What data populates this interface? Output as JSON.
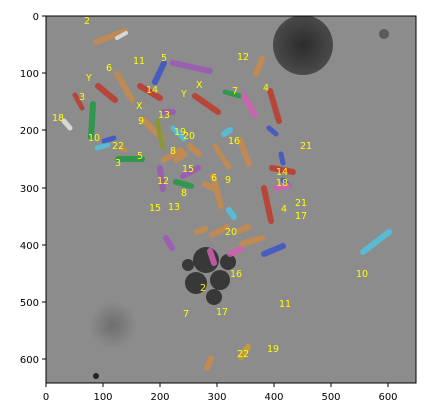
{
  "axes": {
    "x_ticks": [
      "0",
      "100",
      "200",
      "300",
      "400",
      "500",
      "600"
    ],
    "y_ticks": [
      "0",
      "100",
      "200",
      "300",
      "400",
      "500",
      "600"
    ]
  },
  "chromosome_labels": [
    {
      "text": "2"
    },
    {
      "text": "11"
    },
    {
      "text": "5"
    },
    {
      "text": "12"
    },
    {
      "text": "Y"
    },
    {
      "text": "6"
    },
    {
      "text": "X"
    },
    {
      "text": "Y"
    },
    {
      "text": "7"
    },
    {
      "text": "4"
    },
    {
      "text": "3"
    },
    {
      "text": "14"
    },
    {
      "text": "X"
    },
    {
      "text": "13"
    },
    {
      "text": "18"
    },
    {
      "text": "9"
    },
    {
      "text": "10"
    },
    {
      "text": "19"
    },
    {
      "text": "20"
    },
    {
      "text": "16"
    },
    {
      "text": "22"
    },
    {
      "text": "8"
    },
    {
      "text": "21"
    },
    {
      "text": "3"
    },
    {
      "text": "5"
    },
    {
      "text": "15"
    },
    {
      "text": "12"
    },
    {
      "text": "6"
    },
    {
      "text": "9"
    },
    {
      "text": "14"
    },
    {
      "text": "18"
    },
    {
      "text": "8"
    },
    {
      "text": "15"
    },
    {
      "text": "13"
    },
    {
      "text": "4"
    },
    {
      "text": "21"
    },
    {
      "text": "17"
    },
    {
      "text": "20"
    },
    {
      "text": "16"
    },
    {
      "text": "10"
    },
    {
      "text": "2"
    },
    {
      "text": "11"
    },
    {
      "text": "7"
    },
    {
      "text": "17"
    },
    {
      "text": "22"
    },
    {
      "text": "19"
    }
  ],
  "colors": {
    "label_text": "#ffff00",
    "background_gray": "#8c8c8c",
    "axis": "#000000"
  }
}
